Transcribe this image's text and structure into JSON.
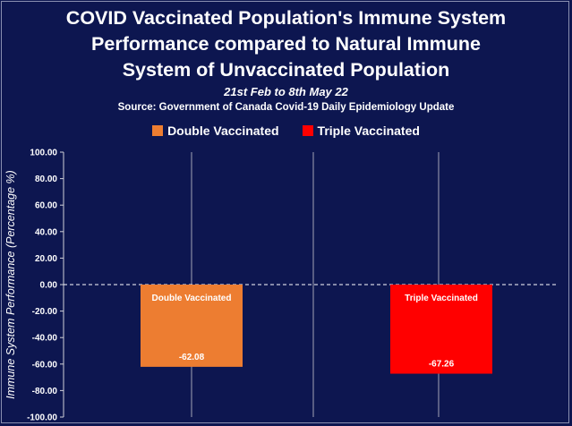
{
  "chart_data": {
    "type": "bar",
    "title": [
      "COVID Vaccinated Population's Immune System",
      "Performance compared to Natural Immune",
      "System of Unvaccinated Population"
    ],
    "subtitle": "21st Feb to 8th May 22",
    "source": "Source: Government of Canada Covid-19 Daily Epidemiology Update",
    "ylabel": "Immune System Performance (Percentage %)",
    "categories": [
      "Double Vaccinated",
      "Triple Vaccinated"
    ],
    "values": [
      -62.08,
      -67.26
    ],
    "value_labels": [
      "-62.08",
      "-67.26"
    ],
    "ylim": [
      -100,
      100
    ],
    "yticks": [
      "100.00",
      "80.00",
      "60.00",
      "40.00",
      "20.00",
      "0.00",
      "-20.00",
      "-40.00",
      "-60.00",
      "-80.00",
      "-100.00"
    ],
    "legend": [
      "Double Vaccinated",
      "Triple Vaccinated"
    ],
    "legend_placement": "top-center",
    "grid": false,
    "colors": {
      "background": "#0d1650",
      "double": "#ed7d31",
      "triple": "#ff0000",
      "axis": "#d0d0d8"
    }
  }
}
